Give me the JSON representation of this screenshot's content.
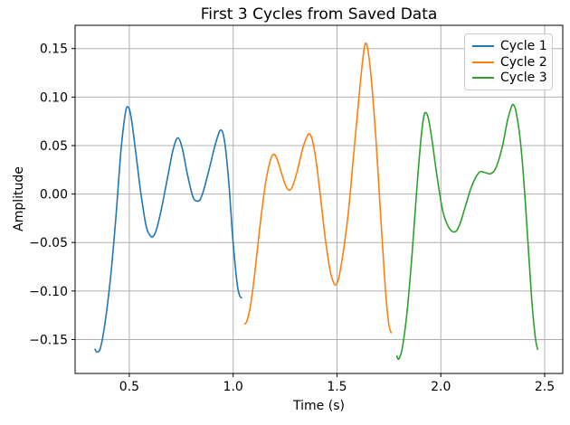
{
  "chart_data": {
    "type": "line",
    "title": "First 3 Cycles from Saved Data",
    "xlabel": "Time (s)",
    "ylabel": "Amplitude",
    "xlim": [
      0.239,
      2.587
    ],
    "ylim": [
      -0.185,
      0.174
    ],
    "xticks": [
      0.5,
      1.0,
      1.5,
      2.0,
      2.5
    ],
    "xtick_labels": [
      "0.5",
      "1.0",
      "1.5",
      "2.0",
      "2.5"
    ],
    "yticks": [
      0.15,
      0.1,
      0.05,
      0.0,
      -0.05,
      -0.1,
      -0.15
    ],
    "ytick_labels": [
      "0.15",
      "0.10",
      "0.05",
      "0.00",
      "−0.05",
      "−0.10",
      "−0.15"
    ],
    "grid": true,
    "grid_color": "#b0b0b0",
    "axes_color": "#000000",
    "legend": {
      "position": "upper right",
      "entries": [
        "Cycle 1",
        "Cycle 2",
        "Cycle 3"
      ]
    },
    "series": [
      {
        "name": "Cycle 1",
        "color": "#1f77b4",
        "points": [
          [
            0.335,
            -0.16
          ],
          [
            0.345,
            -0.163
          ],
          [
            0.362,
            -0.158
          ],
          [
            0.385,
            -0.13
          ],
          [
            0.41,
            -0.085
          ],
          [
            0.435,
            -0.025
          ],
          [
            0.46,
            0.045
          ],
          [
            0.48,
            0.082
          ],
          [
            0.493,
            0.09
          ],
          [
            0.508,
            0.08
          ],
          [
            0.53,
            0.045
          ],
          [
            0.555,
            0.002
          ],
          [
            0.58,
            -0.032
          ],
          [
            0.598,
            -0.042
          ],
          [
            0.613,
            -0.044
          ],
          [
            0.63,
            -0.037
          ],
          [
            0.655,
            -0.015
          ],
          [
            0.685,
            0.018
          ],
          [
            0.71,
            0.045
          ],
          [
            0.733,
            0.058
          ],
          [
            0.755,
            0.047
          ],
          [
            0.78,
            0.02
          ],
          [
            0.805,
            -0.002
          ],
          [
            0.822,
            -0.007
          ],
          [
            0.84,
            -0.006
          ],
          [
            0.858,
            0.004
          ],
          [
            0.885,
            0.026
          ],
          [
            0.915,
            0.052
          ],
          [
            0.94,
            0.066
          ],
          [
            0.958,
            0.055
          ],
          [
            0.978,
            0.015
          ],
          [
            0.998,
            -0.045
          ],
          [
            1.018,
            -0.09
          ],
          [
            1.03,
            -0.104
          ],
          [
            1.04,
            -0.107
          ]
        ]
      },
      {
        "name": "Cycle 2",
        "color": "#ff7f0e",
        "points": [
          [
            1.056,
            -0.134
          ],
          [
            1.068,
            -0.13
          ],
          [
            1.085,
            -0.113
          ],
          [
            1.105,
            -0.08
          ],
          [
            1.13,
            -0.032
          ],
          [
            1.155,
            0.01
          ],
          [
            1.178,
            0.034
          ],
          [
            1.194,
            0.041
          ],
          [
            1.21,
            0.037
          ],
          [
            1.232,
            0.022
          ],
          [
            1.252,
            0.009
          ],
          [
            1.27,
            0.004
          ],
          [
            1.288,
            0.009
          ],
          [
            1.31,
            0.025
          ],
          [
            1.335,
            0.047
          ],
          [
            1.355,
            0.059
          ],
          [
            1.368,
            0.062
          ],
          [
            1.382,
            0.055
          ],
          [
            1.4,
            0.033
          ],
          [
            1.42,
            -0.002
          ],
          [
            1.445,
            -0.048
          ],
          [
            1.468,
            -0.08
          ],
          [
            1.485,
            -0.092
          ],
          [
            1.497,
            -0.093
          ],
          [
            1.51,
            -0.085
          ],
          [
            1.53,
            -0.06
          ],
          [
            1.555,
            -0.018
          ],
          [
            1.58,
            0.04
          ],
          [
            1.605,
            0.098
          ],
          [
            1.622,
            0.135
          ],
          [
            1.636,
            0.155
          ],
          [
            1.65,
            0.147
          ],
          [
            1.668,
            0.112
          ],
          [
            1.69,
            0.048
          ],
          [
            1.712,
            -0.028
          ],
          [
            1.732,
            -0.095
          ],
          [
            1.748,
            -0.132
          ],
          [
            1.76,
            -0.143
          ]
        ]
      },
      {
        "name": "Cycle 3",
        "color": "#2ca02c",
        "points": [
          [
            1.788,
            -0.167
          ],
          [
            1.798,
            -0.17
          ],
          [
            1.815,
            -0.158
          ],
          [
            1.838,
            -0.12
          ],
          [
            1.862,
            -0.06
          ],
          [
            1.885,
            0.008
          ],
          [
            1.905,
            0.058
          ],
          [
            1.918,
            0.08
          ],
          [
            1.928,
            0.084
          ],
          [
            1.94,
            0.078
          ],
          [
            1.958,
            0.055
          ],
          [
            1.982,
            0.018
          ],
          [
            2.01,
            -0.018
          ],
          [
            2.04,
            -0.035
          ],
          [
            2.068,
            -0.039
          ],
          [
            2.09,
            -0.032
          ],
          [
            2.115,
            -0.015
          ],
          [
            2.145,
            0.006
          ],
          [
            2.17,
            0.018
          ],
          [
            2.19,
            0.023
          ],
          [
            2.215,
            0.022
          ],
          [
            2.24,
            0.021
          ],
          [
            2.265,
            0.027
          ],
          [
            2.295,
            0.048
          ],
          [
            2.32,
            0.075
          ],
          [
            2.34,
            0.09
          ],
          [
            2.35,
            0.092
          ],
          [
            2.362,
            0.085
          ],
          [
            2.38,
            0.06
          ],
          [
            2.398,
            0.018
          ],
          [
            2.418,
            -0.045
          ],
          [
            2.438,
            -0.11
          ],
          [
            2.455,
            -0.148
          ],
          [
            2.466,
            -0.16
          ]
        ]
      }
    ]
  }
}
